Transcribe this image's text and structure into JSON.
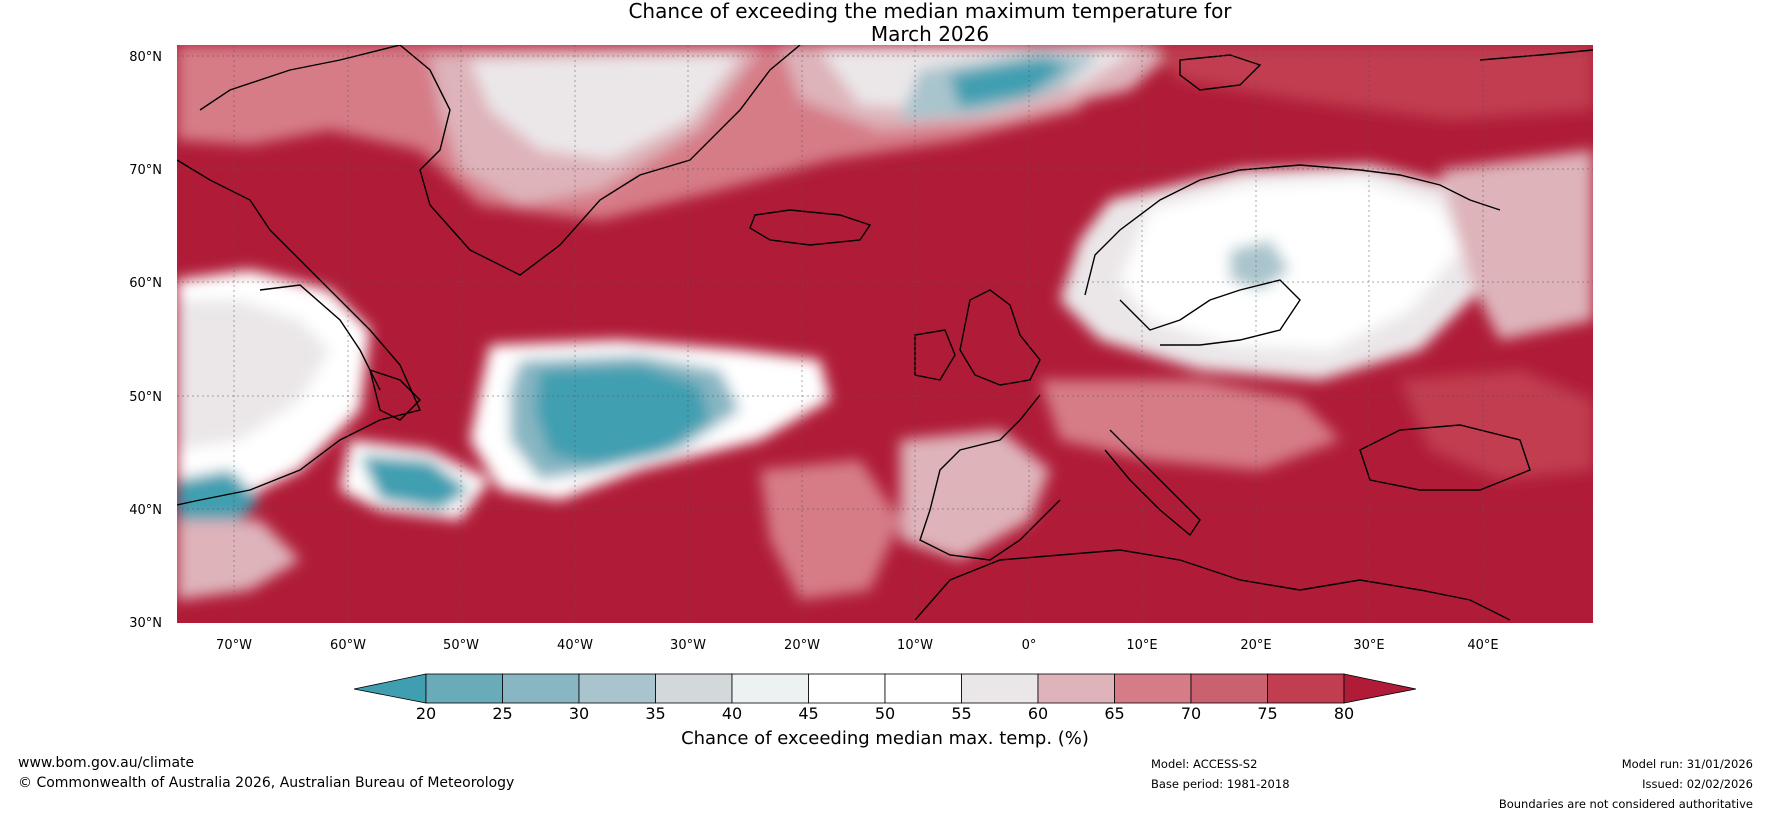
{
  "title_line1": "Chance of exceeding the median maximum temperature for",
  "title_line2": "March 2026",
  "lat_labels": [
    "80°N",
    "70°N",
    "60°N",
    "50°N",
    "40°N",
    "30°N"
  ],
  "lon_labels": [
    "70°W",
    "60°W",
    "50°W",
    "40°W",
    "30°W",
    "20°W",
    "10°W",
    "0°",
    "10°E",
    "20°E",
    "30°E",
    "40°E"
  ],
  "colorbar": {
    "ticks": [
      "20",
      "25",
      "30",
      "35",
      "40",
      "45",
      "50",
      "55",
      "60",
      "65",
      "70",
      "75",
      "80"
    ],
    "colors": [
      "#3f9fb1",
      "#6aabb9",
      "#88b6c3",
      "#a9c4cc",
      "#d3d9db",
      "#ecf1f2",
      "#ffffff",
      "#ffffff",
      "#ebe7e9",
      "#deb3ba",
      "#d67c87",
      "#c9626e",
      "#c13d50",
      "#b01c38"
    ],
    "label": "Chance of exceeding median max. temp. (%)"
  },
  "legend": {
    "positive_color": "#b01c38",
    "negative_color": "#3f9fb1",
    "neutral_color": "#ffffff"
  },
  "footer": {
    "url": "www.bom.gov.au/climate",
    "copyright": "© Commonwealth of Australia 2026, Australian Bureau of Meteorology",
    "model": "Model: ACCESS-S2",
    "base_period": "Base period: 1981-2018",
    "model_run": "Model run: 31/01/2026",
    "issued": "Issued: 02/02/2026",
    "boundaries": "Boundaries are not considered authoritative"
  }
}
